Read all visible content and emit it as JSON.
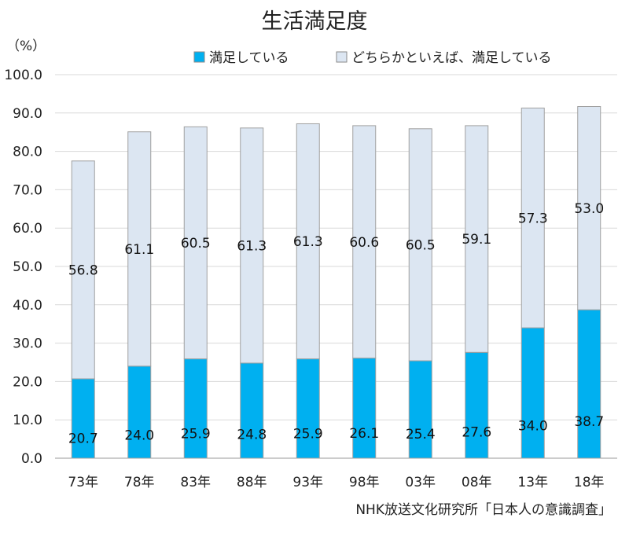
{
  "chart_data": {
    "type": "bar",
    "stacked": true,
    "title": "生活満足度",
    "unit_label": "（%）",
    "source": "NHK放送文化研究所「日本人の意識調査」",
    "categories": [
      "73年",
      "78年",
      "83年",
      "88年",
      "93年",
      "98年",
      "03年",
      "08年",
      "13年",
      "18年"
    ],
    "series": [
      {
        "name": "満足している",
        "color": "#00b0f0",
        "values": [
          20.7,
          24.0,
          25.9,
          24.8,
          25.9,
          26.1,
          25.4,
          27.6,
          34.0,
          38.7
        ],
        "labels": [
          "20.7",
          "24.0",
          "25.9",
          "24.8",
          "25.9",
          "26.1",
          "25.4",
          "27.6",
          "34.0",
          "38.7"
        ]
      },
      {
        "name": "どちらかといえば、満足している",
        "color": "#dce6f2",
        "values": [
          56.8,
          61.1,
          60.5,
          61.3,
          61.3,
          60.6,
          60.5,
          59.1,
          57.3,
          53.0
        ],
        "labels": [
          "56.8",
          "61.1",
          "60.5",
          "61.3",
          "61.3",
          "60.6",
          "60.5",
          "59.1",
          "57.3",
          "53.0"
        ]
      }
    ],
    "ylim": [
      0,
      100
    ],
    "yticks": [
      "0.0",
      "10.0",
      "20.0",
      "30.0",
      "40.0",
      "50.0",
      "60.0",
      "70.0",
      "80.0",
      "90.0",
      "100.0"
    ],
    "grid": true,
    "legend_position": "top"
  }
}
